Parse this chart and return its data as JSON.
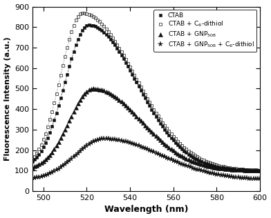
{
  "title": "",
  "xlabel": "Wavelength (nm)",
  "ylabel": "Fluorescence Intensity (a.u.)",
  "xlim": [
    495,
    600
  ],
  "ylim": [
    0,
    900
  ],
  "yticks": [
    0,
    100,
    200,
    300,
    400,
    500,
    600,
    700,
    800,
    900
  ],
  "xticks": [
    500,
    520,
    540,
    560,
    580,
    600
  ],
  "legend": [
    "CTAB",
    "CTAB + C$_6$-dithiol",
    "CTAB + GNP$_{508}$",
    "CTAB + GNP$_{508}$ + C$_6$-dithiol"
  ],
  "background_color": "#ffffff",
  "curves": {
    "ctab": {
      "peak_x": 521,
      "peak_y": 810,
      "base": 100,
      "sl": 11,
      "sr": 22
    },
    "ctab_dithiol": {
      "peak_x": 518,
      "peak_y": 868,
      "base": 100,
      "sl": 10,
      "sr": 24
    },
    "ctab_gnp": {
      "peak_x": 523,
      "peak_y": 500,
      "base": 100,
      "sl": 11,
      "sr": 22
    },
    "ctab_gnp_dithiol": {
      "peak_x": 528,
      "peak_y": 255,
      "base": 55,
      "sl": 13,
      "sr": 26
    }
  }
}
